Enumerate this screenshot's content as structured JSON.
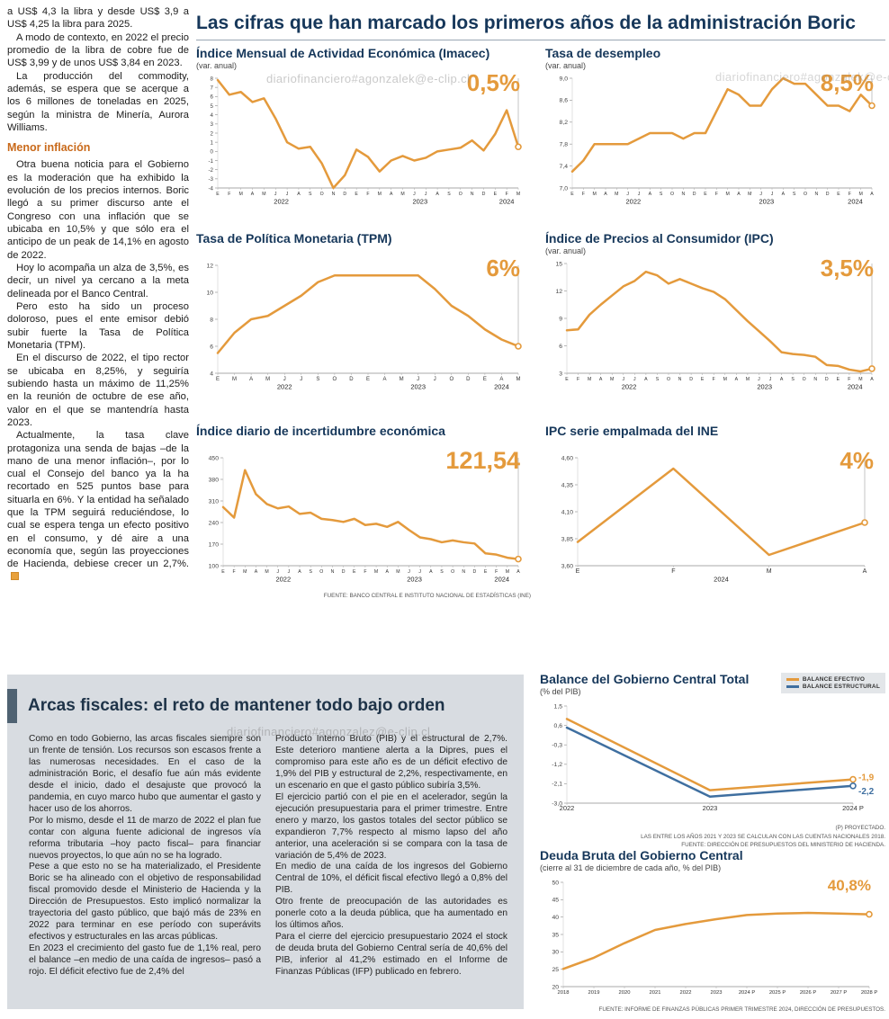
{
  "page": {
    "main_title": "Las cifras que han marcado los primeros años de la administración Boric",
    "watermark_top": "diariofinanciero#agonzalek@e-clip.cl",
    "watermark_bottom": "diariofinanciero#agonzalez@e-clip.cl",
    "accent_orange": "#e49a3c",
    "accent_blue": "#3f6fa0",
    "title_navy": "#16375a"
  },
  "left_article": {
    "segments": [
      {
        "type": "p",
        "text": "a US$ 4,3 la libra y desde US$ 3,9 a US$ 4,25 la libra para 2025."
      },
      {
        "type": "p",
        "text": "A modo de contexto, en 2022 el precio promedio de la libra de cobre fue de US$ 3,99 y de unos US$ 3,84 en 2023."
      },
      {
        "type": "p",
        "text": "La producción del commodity, además, se espera que se acerque a los 6 millones de toneladas en 2025, según la ministra de Minería, Aurora Williams."
      },
      {
        "type": "h",
        "text": "Menor inflación"
      },
      {
        "type": "p",
        "text": "Otra buena noticia para el Gobierno es la moderación que ha exhibido la evolución de los precios internos. Boric llegó a su primer discurso ante el Congreso con una inflación que se ubicaba en 10,5% y que sólo era el anticipo de un peak de 14,1% en agosto de 2022."
      },
      {
        "type": "p",
        "text": "Hoy lo acompaña un alza de 3,5%, es decir, un nivel ya cercano a la meta delineada por el Banco Central."
      },
      {
        "type": "p",
        "text": "Pero esto ha sido un proceso doloroso, pues el ente emisor debió subir fuerte la Tasa de Política Monetaria (TPM)."
      },
      {
        "type": "p",
        "text": "En el discurso de 2022, el tipo rector se ubicaba en 8,25%, y seguiría subiendo hasta un máximo de 11,25% en la reunión de octubre de ese año, valor en el que se mantendría hasta 2023."
      },
      {
        "type": "p",
        "text": "Actualmente, la tasa clave protagoniza una senda de bajas –de la mano de una menor inflación–, por lo cual el Consejo del banco ya la ha recortado en 525 puntos base para situarla en 6%. Y la entidad ha señalado que la TPM seguirá reduciéndose, lo cual se espera tenga un efecto positivo en el consumo, y dé aire a una economía que, según las proyecciones de Hacienda, debiese crecer un 2,7%.",
        "end_icon": true
      }
    ]
  },
  "fiscal_panel": {
    "headline": "Arcas fiscales: el reto de mantener todo bajo orden",
    "col1": [
      "Como en todo Gobierno, las arcas fiscales siempre son un frente de tensión. Los recursos son escasos frente a las numerosas necesidades. En el caso de la administración Boric, el desafío fue aún más evidente desde el inicio, dado el desajuste que provocó la pandemia, en cuyo marco hubo que aumentar el gasto y hacer uso de los ahorros.",
      "Por lo mismo, desde el 11 de marzo de 2022 el plan fue contar con alguna fuente adicional de ingresos vía reforma tributaria –hoy pacto fiscal– para financiar nuevos proyectos, lo que aún no se ha logrado.",
      "Pese a que esto no se ha materializado, el Presidente Boric se ha alineado con el objetivo de responsabilidad fiscal promovido desde el Ministerio de Hacienda y la Dirección de Presupuestos. Esto implicó normalizar la trayectoria del gasto público, que bajó más de 23% en 2022 para terminar en ese período con superávits efectivos y estructurales en las arcas públicas.",
      "En 2023 el crecimiento del gasto fue de 1,1% real, pero el balance –en medio de una caída de ingresos– pasó a rojo. El déficit efectivo fue de 2,4% del"
    ],
    "col2": [
      "Producto Interno Bruto (PIB) y el estructural de 2,7%. Este deterioro mantiene alerta a la Dipres, pues el compromiso para este año es de un déficit efectivo de 1,9% del PIB y estructural de 2,2%, respectivamente, en un escenario en que el gasto público subiría 3,5%.",
      "El ejercicio partió con el pie en el acelerador, según la ejecución presupuestaria para el primer trimestre. Entre enero y marzo, los gastos totales del sector público se expandieron 7,7% respecto al mismo lapso del año anterior, una aceleración si se compara con la tasa de variación de 5,4% de 2023.",
      "En medio de una caída de los ingresos del Gobierno Central de 10%, el déficit fiscal efectivo llegó a 0,8% del PIB.",
      "Otro frente de preocupación de las autoridades es ponerle coto a la deuda pública, que ha aumentado en los últimos años.",
      "Para el cierre del ejercicio presupuestario 2024 el stock de deuda bruta del Gobierno Central sería de 40,6% del PIB, inferior al 41,2% estimado en el Informe de Finanzas Públicas (IFP) publicado en febrero."
    ]
  },
  "chart_data": [
    {
      "type": "line",
      "title": "Índice Mensual de Actividad Económica (Imacec)",
      "subtitle": "(var. anual)",
      "big_label": "0,5%",
      "ylim": [
        -4,
        8
      ],
      "ytick_values": [
        8,
        7,
        6,
        5,
        4,
        3,
        2,
        1,
        0,
        -1,
        -2,
        -3,
        -4
      ],
      "ytick_labels": [
        "8",
        "7",
        "6",
        "5",
        "4",
        "3",
        "2",
        "1",
        "0",
        "-1",
        "-2",
        "-3",
        "-4"
      ],
      "yfont": 6.2,
      "xlabels": [
        "E",
        "F",
        "M",
        "A",
        "M",
        "J",
        "J",
        "A",
        "S",
        "O",
        "N",
        "D",
        "E",
        "F",
        "M",
        "A",
        "M",
        "J",
        "J",
        "A",
        "S",
        "O",
        "N",
        "D",
        "E",
        "F",
        "M"
      ],
      "year_groups": [
        {
          "label": "2022",
          "start": 0,
          "end": 11
        },
        {
          "label": "2023",
          "start": 12,
          "end": 23
        },
        {
          "label": "2024",
          "start": 24,
          "end": 26
        }
      ],
      "guide": true,
      "margins": {
        "l": 24,
        "r": 14,
        "t": 6,
        "b": 24
      },
      "series": [
        {
          "name": "Imacec",
          "color": "#e49a3c",
          "end_marker": true,
          "values": [
            7.8,
            6.2,
            6.5,
            5.4,
            5.8,
            3.6,
            1.0,
            0.3,
            0.5,
            -1.3,
            -4.0,
            -2.6,
            0.2,
            -0.6,
            -2.2,
            -1.0,
            -0.5,
            -1.0,
            -0.7,
            0.0,
            0.2,
            0.4,
            1.2,
            0.1,
            1.9,
            4.5,
            0.5
          ]
        }
      ]
    },
    {
      "type": "line",
      "title": "Tasa de desempleo",
      "subtitle": "(var. anual)",
      "big_label": "8,5%",
      "ylim": [
        7.0,
        9.0
      ],
      "ytick_values": [
        9.0,
        8.6,
        8.2,
        7.8,
        7.4,
        7.0
      ],
      "ytick_labels": [
        "9,0",
        "8,6",
        "8,2",
        "7,8",
        "7,4",
        "7,0"
      ],
      "xlabels": [
        "E",
        "F",
        "M",
        "A",
        "M",
        "J",
        "J",
        "A",
        "S",
        "O",
        "N",
        "D",
        "E",
        "F",
        "M",
        "A",
        "M",
        "J",
        "J",
        "A",
        "S",
        "O",
        "N",
        "D",
        "E",
        "F",
        "M",
        "A"
      ],
      "year_groups": [
        {
          "label": "2022",
          "start": 0,
          "end": 11
        },
        {
          "label": "2023",
          "start": 12,
          "end": 23
        },
        {
          "label": "2024",
          "start": 24,
          "end": 27
        }
      ],
      "guide": true,
      "margins": {
        "l": 30,
        "r": 14,
        "t": 6,
        "b": 24
      },
      "series": [
        {
          "name": "Tasa de desempleo",
          "color": "#e49a3c",
          "end_marker": true,
          "values": [
            7.3,
            7.5,
            7.8,
            7.8,
            7.8,
            7.8,
            7.9,
            8.0,
            8.0,
            8.0,
            7.9,
            8.0,
            8.0,
            8.4,
            8.8,
            8.7,
            8.5,
            8.5,
            8.8,
            9.0,
            8.9,
            8.9,
            8.7,
            8.5,
            8.5,
            8.4,
            8.7,
            8.5
          ]
        }
      ]
    },
    {
      "type": "line",
      "title": "Tasa de Política Monetaria (TPM)",
      "subtitle": "",
      "big_label": "6%",
      "ylim": [
        4,
        12
      ],
      "ytick_values": [
        12,
        10,
        8,
        6,
        4
      ],
      "ytick_labels": [
        "12",
        "10",
        "8",
        "6",
        "4"
      ],
      "xlabels": [
        "E",
        "M",
        "A",
        "M",
        "J",
        "J",
        "S",
        "O",
        "D",
        "E",
        "A",
        "M",
        "J",
        "J",
        "O",
        "D",
        "E",
        "A",
        "M"
      ],
      "xfont": 6,
      "year_groups": [
        {
          "label": "2022",
          "start": 0,
          "end": 8
        },
        {
          "label": "2023",
          "start": 9,
          "end": 15
        },
        {
          "label": "2024",
          "start": 16,
          "end": 18
        }
      ],
      "guide": true,
      "margins": {
        "l": 24,
        "r": 14,
        "t": 8,
        "b": 24
      },
      "series": [
        {
          "name": "TPM",
          "color": "#e49a3c",
          "end_marker": true,
          "values": [
            5.5,
            7.0,
            8.0,
            8.25,
            9.0,
            9.75,
            10.75,
            11.25,
            11.25,
            11.25,
            11.25,
            11.25,
            11.25,
            10.25,
            9.0,
            8.25,
            7.25,
            6.5,
            6.0
          ]
        }
      ]
    },
    {
      "type": "line",
      "title": "Índice de Precios al Consumidor (IPC)",
      "subtitle": "(var. anual)",
      "big_label": "3,5%",
      "ylim": [
        3,
        15
      ],
      "ytick_values": [
        15,
        12,
        9,
        6,
        3
      ],
      "ytick_labels": [
        "15",
        "12",
        "9",
        "6",
        "3"
      ],
      "xlabels": [
        "E",
        "F",
        "M",
        "A",
        "M",
        "J",
        "J",
        "A",
        "S",
        "O",
        "N",
        "D",
        "E",
        "F",
        "M",
        "A",
        "M",
        "J",
        "J",
        "A",
        "S",
        "O",
        "N",
        "D",
        "E",
        "F",
        "M",
        "A"
      ],
      "year_groups": [
        {
          "label": "2022",
          "start": 0,
          "end": 11
        },
        {
          "label": "2023",
          "start": 12,
          "end": 23
        },
        {
          "label": "2024",
          "start": 24,
          "end": 27
        }
      ],
      "guide": true,
      "margins": {
        "l": 24,
        "r": 14,
        "t": 6,
        "b": 24
      },
      "series": [
        {
          "name": "IPC",
          "color": "#e49a3c",
          "end_marker": true,
          "values": [
            7.7,
            7.8,
            9.4,
            10.5,
            11.5,
            12.5,
            13.1,
            14.1,
            13.7,
            12.8,
            13.3,
            12.8,
            12.3,
            11.9,
            11.1,
            9.9,
            8.7,
            7.6,
            6.5,
            5.3,
            5.1,
            5.0,
            4.8,
            3.9,
            3.8,
            3.4,
            3.2,
            3.5
          ]
        }
      ]
    },
    {
      "type": "line",
      "title": "Índice diario de incertidumbre económica",
      "subtitle": "",
      "big_label": "121,54",
      "ylim": [
        100,
        450
      ],
      "ytick_values": [
        450,
        380,
        310,
        240,
        170,
        100
      ],
      "ytick_labels": [
        "450",
        "380",
        "310",
        "240",
        "170",
        "100"
      ],
      "xlabels": [
        "E",
        "F",
        "M",
        "A",
        "M",
        "J",
        "J",
        "A",
        "S",
        "O",
        "N",
        "D",
        "E",
        "F",
        "M",
        "A",
        "M",
        "J",
        "J",
        "A",
        "S",
        "O",
        "N",
        "D",
        "E",
        "F",
        "M",
        "A"
      ],
      "year_groups": [
        {
          "label": "2022",
          "start": 0,
          "end": 11
        },
        {
          "label": "2023",
          "start": 12,
          "end": 23
        },
        {
          "label": "2024",
          "start": 24,
          "end": 27
        }
      ],
      "guide": true,
      "margins": {
        "l": 30,
        "r": 14,
        "t": 8,
        "b": 24
      },
      "source": "FUENTE: BANCO CENTRAL E INSTITUTO NACIONAL DE ESTADÍSTICAS (INE)",
      "series": [
        {
          "name": "Incertidumbre económica",
          "color": "#e49a3c",
          "end_marker": true,
          "values": [
            290,
            256,
            410,
            332,
            300,
            286,
            292,
            268,
            272,
            252,
            248,
            242,
            252,
            232,
            236,
            226,
            242,
            216,
            192,
            186,
            176,
            182,
            176,
            172,
            140,
            136,
            126,
            121.54
          ]
        }
      ]
    },
    {
      "type": "line",
      "title": "IPC serie empalmada del INE",
      "subtitle": "",
      "big_label": "4%",
      "ylim": [
        3.6,
        4.6
      ],
      "ytick_values": [
        4.6,
        4.35,
        4.1,
        3.85,
        3.6
      ],
      "ytick_labels": [
        "4,60",
        "4,35",
        "4,10",
        "3,85",
        "3,60"
      ],
      "xlabels": [
        "E",
        "F",
        "M",
        "A"
      ],
      "xfont": 7,
      "year_groups": [
        {
          "label": "2024",
          "start": 0,
          "end": 3
        }
      ],
      "guide": true,
      "margins": {
        "l": 36,
        "r": 22,
        "t": 8,
        "b": 24
      },
      "series": [
        {
          "name": "IPC serie empalmada",
          "color": "#e49a3c",
          "end_marker": true,
          "values": [
            3.82,
            4.5,
            3.7,
            4.0
          ]
        }
      ]
    },
    {
      "type": "line",
      "title": "Balance del Gobierno Central Total",
      "subtitle": "(% del PIB)",
      "legend": [
        {
          "label": "BALANCE EFECTIVO",
          "color": "#e49a3c"
        },
        {
          "label": "BALANCE ESTRUCTURAL",
          "color": "#3f6fa0"
        }
      ],
      "ylim": [
        -3.0,
        1.5
      ],
      "ytick_values": [
        1.5,
        0.6,
        -0.3,
        -1.2,
        -2.1,
        -3.0
      ],
      "ytick_labels": [
        "1,5",
        "0,6",
        "-0,3",
        "-1,2",
        "-2,1",
        "-3,0"
      ],
      "xlabels": [
        "2022",
        "2023",
        "2024 P"
      ],
      "xfont": 7.5,
      "margins": {
        "l": 30,
        "r": 36,
        "t": 8,
        "b": 16
      },
      "notes": [
        "(P) PROYECTADO.",
        "LAS ENTRE LOS AÑOS 2021 Y 2023 SE CALCULAN  CON LAS CUENTAS NACIONALES 2018.",
        "FUENTE: DIRECCIÓN DE PRESUPUESTOS DEL MINISTERIO DE HACIENDA."
      ],
      "series": [
        {
          "name": "BALANCE EFECTIVO",
          "color": "#e49a3c",
          "end_marker": true,
          "end_label": "-1,9",
          "dy": -2,
          "values": [
            0.9,
            -2.4,
            -1.9
          ]
        },
        {
          "name": "BALANCE ESTRUCTURAL",
          "color": "#3f6fa0",
          "end_marker": true,
          "end_label": "-2,2",
          "dy": 6,
          "values": [
            0.5,
            -2.7,
            -2.2
          ]
        }
      ]
    },
    {
      "type": "line",
      "title": "Deuda Bruta del Gobierno Central",
      "subtitle": "(cierre al 31 de diciembre de cada año, % del PIB)",
      "big_label": "40,8%",
      "ylim": [
        20,
        50
      ],
      "ytick_values": [
        50,
        45,
        40,
        35,
        30,
        25,
        20
      ],
      "ytick_labels": [
        "50",
        "45",
        "40",
        "35",
        "30",
        "25",
        "20"
      ],
      "xlabels": [
        "2018",
        "2019",
        "2020",
        "2021",
        "2022",
        "2023",
        "2024 P",
        "2025 P",
        "2026 P",
        "2027 P",
        "2028 P"
      ],
      "xfont": 5.8,
      "margins": {
        "l": 26,
        "r": 18,
        "t": 8,
        "b": 16
      },
      "source": "FUENTE: INFORME DE FINANZAS PÚBLICAS PRIMER TRIMESTRE 2024, DIRECCIÓN DE PRESUPUESTOS.",
      "series": [
        {
          "name": "Deuda bruta",
          "color": "#e49a3c",
          "end_marker": true,
          "values": [
            25.1,
            28.3,
            32.5,
            36.3,
            38.0,
            39.4,
            40.6,
            41.0,
            41.2,
            41.0,
            40.8
          ]
        }
      ]
    }
  ]
}
